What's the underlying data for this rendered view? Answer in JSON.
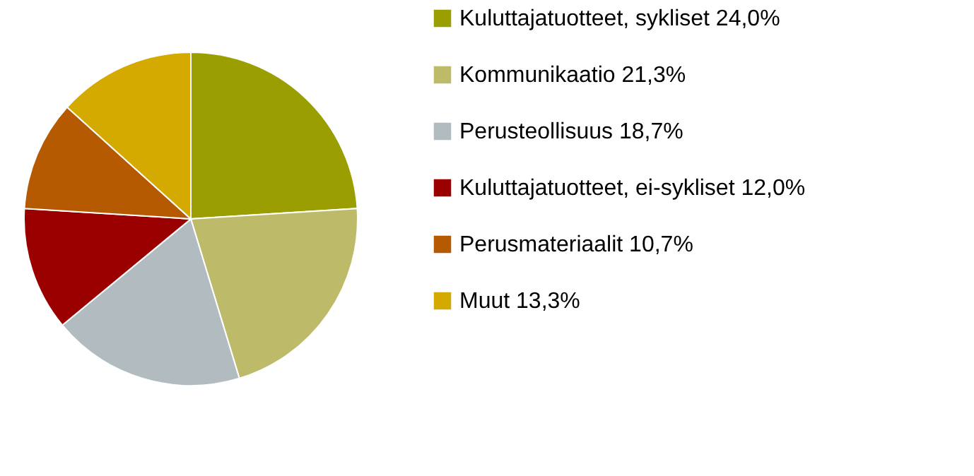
{
  "chart_data": {
    "type": "pie",
    "categories": [
      "Kuluttajatuotteet, sykliset 24,0%",
      "Kommunikaatio 21,3%",
      "Perusteollisuus 18,7%",
      "Kuluttajatuotteet, ei-sykliset 12,0%",
      "Perusmateriaalit 10,7%",
      "Muut 13,3%"
    ],
    "values": [
      24.0,
      21.3,
      18.7,
      12.0,
      10.7,
      13.3
    ],
    "colors": [
      "#9a9e00",
      "#bdbb6a",
      "#b2bcc0",
      "#9b0000",
      "#b55a00",
      "#d4aa00"
    ],
    "legend": "right"
  }
}
